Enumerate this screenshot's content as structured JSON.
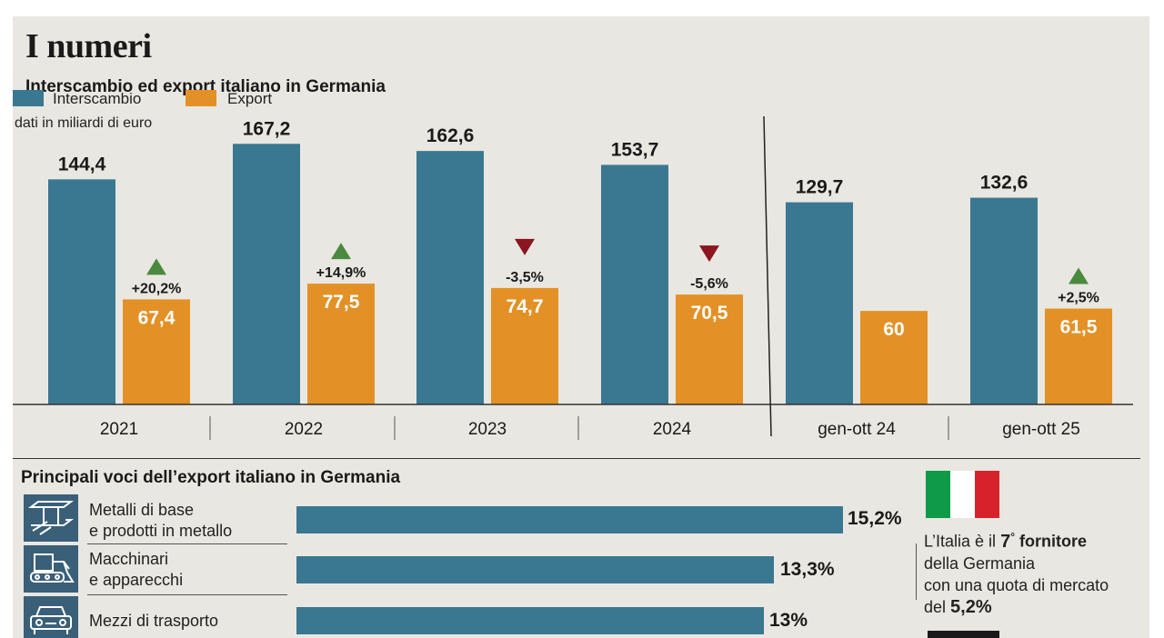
{
  "title": "I numeri",
  "chart_data": {
    "type": "bar",
    "title": "Interscambio ed export italiano in Germania",
    "units": "dati in miliardi di euro",
    "categories": [
      "2021",
      "2022",
      "2023",
      "2024",
      "gen-ott 24",
      "gen-ott 25"
    ],
    "series": [
      {
        "name": "Interscambio",
        "values": [
          144.4,
          167.2,
          162.6,
          153.7,
          129.7,
          132.6
        ],
        "labels": [
          "144,4",
          "167,2",
          "162,6",
          "153,7",
          "129,7",
          "132,6"
        ]
      },
      {
        "name": "Export",
        "values": [
          67.4,
          77.5,
          74.7,
          70.5,
          60,
          61.5
        ],
        "labels": [
          "67,4",
          "77,5",
          "74,7",
          "70,5",
          "60",
          "61,5"
        ]
      }
    ],
    "changes": [
      "+20,2%",
      "+14,9%",
      "-3,5%",
      "-5,6%",
      "",
      "+2,5%"
    ],
    "change_direction": [
      "up",
      "up",
      "down",
      "down",
      "",
      "up"
    ],
    "ylim": [
      0,
      180
    ]
  },
  "colors": {
    "interscambio": "#3a7791",
    "export": "#e39126",
    "up": "#4a8a3f",
    "down": "#8c1520",
    "text": "#1a1a1a",
    "icon_bg": "#3a5f78"
  },
  "export_items": {
    "title": "Principali voci dell’export italiano in Germania",
    "items": [
      {
        "line1": "Metalli di base",
        "line2": "e prodotti in metallo",
        "value": 15.2,
        "label": "15,2%",
        "icon": "steel-beam-icon"
      },
      {
        "line1": "Macchinari",
        "line2": "e apparecchi",
        "value": 13.3,
        "label": "13,3%",
        "icon": "machinery-icon"
      },
      {
        "line1": "Mezzi di trasporto",
        "line2": "",
        "value": 13,
        "label": "13%",
        "icon": "car-icon"
      }
    ]
  },
  "info": {
    "t1": "L’Italia è il ",
    "rank": "7",
    "deg": "°",
    "t2": " fornitore",
    "t3": "della Germania",
    "t4": "con una quota di mercato",
    "t5": "del ",
    "share": "5,2%",
    "flag_colors": [
      "#0e9a48",
      "#ffffff",
      "#d8222b"
    ]
  }
}
